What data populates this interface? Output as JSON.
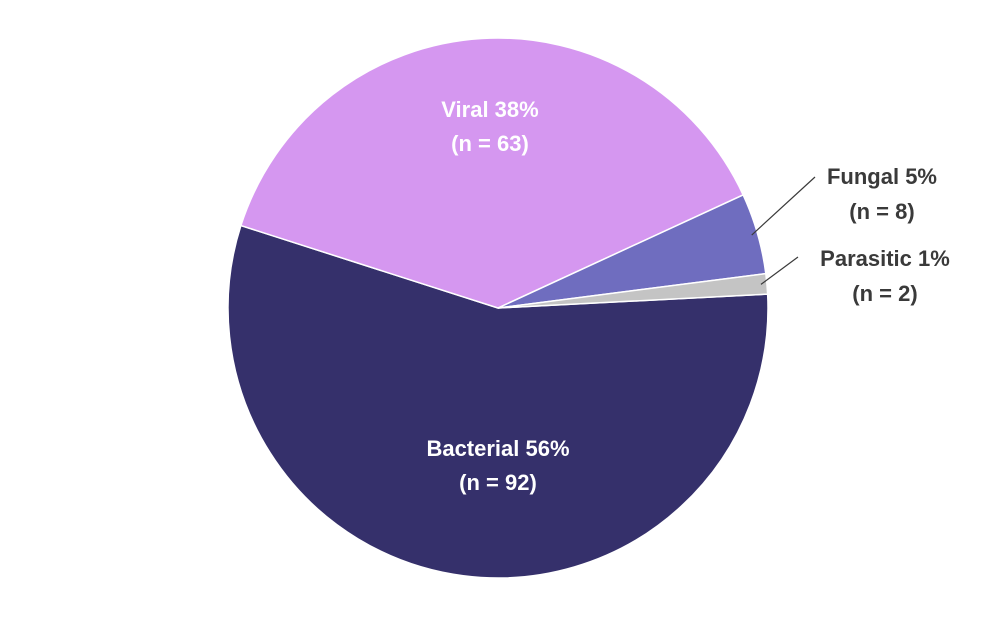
{
  "chart_data": {
    "type": "pie",
    "title": "",
    "slices": [
      {
        "label": "Bacterial",
        "value": 92,
        "percent_label": "56%",
        "count_label": "(n = 92)",
        "color": "#35306b",
        "label_color": "#ffffff"
      },
      {
        "label": "Viral",
        "value": 63,
        "percent_label": "38%",
        "count_label": "(n = 63)",
        "color": "#d597f0",
        "label_color": "#ffffff"
      },
      {
        "label": "Fungal",
        "value": 8,
        "percent_label": "5%",
        "count_label": "(n = 8)",
        "color": "#6f6dbf",
        "label_color": "#3a3a3a"
      },
      {
        "label": "Parasitic",
        "value": 2,
        "percent_label": "1%",
        "count_label": "(n = 2)",
        "color": "#c4c4c4",
        "label_color": "#3a3a3a"
      }
    ],
    "legend": "none"
  }
}
